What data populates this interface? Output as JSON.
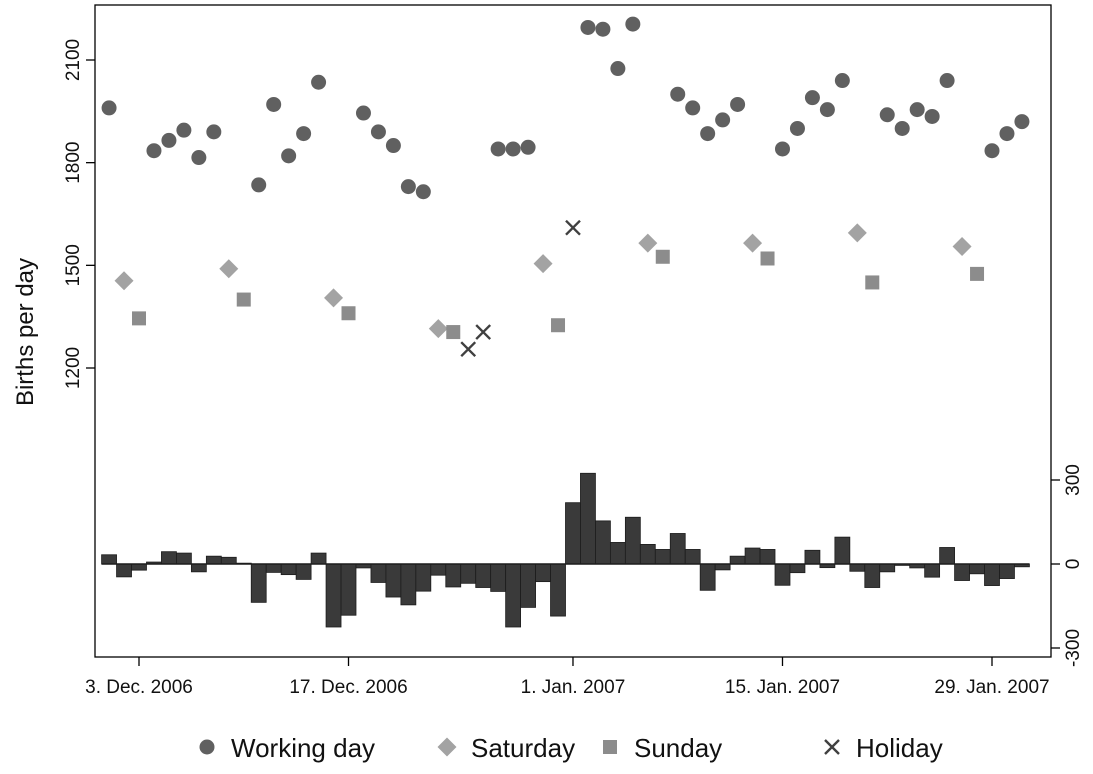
{
  "chart_data": {
    "type": "scatter",
    "ylabel": "Births per day",
    "x_tick_labels": [
      "3. Dec. 2006",
      "17. Dec. 2006",
      "1. Jan. 2007",
      "15. Jan. 2007",
      "29. Jan. 2007"
    ],
    "x_tick_dates": [
      "2006-12-03",
      "2006-12-17",
      "2007-01-01",
      "2007-01-15",
      "2007-01-29"
    ],
    "xlim": [
      "2006-11-30",
      "2007-02-01"
    ],
    "y_left_ticks": [
      1200,
      1500,
      1800,
      2100
    ],
    "y_left_range": [
      1200,
      2100
    ],
    "y_right_ticks": [
      -300,
      0,
      300
    ],
    "y_right_range": [
      -300,
      300
    ],
    "grid": false,
    "legend_position": "bottom",
    "legend": [
      {
        "label": "Working day",
        "marker": "circle",
        "color": "#606060"
      },
      {
        "label": "Saturday",
        "marker": "diamond",
        "color": "#a3a3a3"
      },
      {
        "label": "Sunday",
        "marker": "square",
        "color": "#8c8c8c"
      },
      {
        "label": "Holiday",
        "marker": "cross",
        "color": "#404040"
      }
    ],
    "points": [
      {
        "date": "2006-12-01",
        "births": 1960,
        "kind": "Working day"
      },
      {
        "date": "2006-12-02",
        "births": 1455,
        "kind": "Saturday"
      },
      {
        "date": "2006-12-03",
        "births": 1345,
        "kind": "Sunday"
      },
      {
        "date": "2006-12-04",
        "births": 1835,
        "kind": "Working day"
      },
      {
        "date": "2006-12-05",
        "births": 1865,
        "kind": "Working day"
      },
      {
        "date": "2006-12-06",
        "births": 1895,
        "kind": "Working day"
      },
      {
        "date": "2006-12-07",
        "births": 1815,
        "kind": "Working day"
      },
      {
        "date": "2006-12-08",
        "births": 1890,
        "kind": "Working day"
      },
      {
        "date": "2006-12-09",
        "births": 1490,
        "kind": "Saturday"
      },
      {
        "date": "2006-12-10",
        "births": 1400,
        "kind": "Sunday"
      },
      {
        "date": "2006-12-11",
        "births": 1735,
        "kind": "Working day"
      },
      {
        "date": "2006-12-12",
        "births": 1970,
        "kind": "Working day"
      },
      {
        "date": "2006-12-13",
        "births": 1820,
        "kind": "Working day"
      },
      {
        "date": "2006-12-14",
        "births": 1885,
        "kind": "Working day"
      },
      {
        "date": "2006-12-15",
        "births": 2035,
        "kind": "Working day"
      },
      {
        "date": "2006-12-16",
        "births": 1405,
        "kind": "Saturday"
      },
      {
        "date": "2006-12-17",
        "births": 1360,
        "kind": "Sunday"
      },
      {
        "date": "2006-12-18",
        "births": 1945,
        "kind": "Working day"
      },
      {
        "date": "2006-12-19",
        "births": 1890,
        "kind": "Working day"
      },
      {
        "date": "2006-12-20",
        "births": 1850,
        "kind": "Working day"
      },
      {
        "date": "2006-12-21",
        "births": 1730,
        "kind": "Working day"
      },
      {
        "date": "2006-12-22",
        "births": 1715,
        "kind": "Working day"
      },
      {
        "date": "2006-12-23",
        "births": 1315,
        "kind": "Saturday"
      },
      {
        "date": "2006-12-24",
        "births": 1305,
        "kind": "Sunday"
      },
      {
        "date": "2006-12-25",
        "births": 1255,
        "kind": "Holiday"
      },
      {
        "date": "2006-12-26",
        "births": 1305,
        "kind": "Holiday"
      },
      {
        "date": "2006-12-27",
        "births": 1840,
        "kind": "Working day"
      },
      {
        "date": "2006-12-28",
        "births": 1840,
        "kind": "Working day"
      },
      {
        "date": "2006-12-29",
        "births": 1845,
        "kind": "Working day"
      },
      {
        "date": "2006-12-30",
        "births": 1505,
        "kind": "Saturday"
      },
      {
        "date": "2006-12-31",
        "births": 1325,
        "kind": "Sunday"
      },
      {
        "date": "2007-01-01",
        "births": 1610,
        "kind": "Holiday"
      },
      {
        "date": "2007-01-02",
        "births": 2195,
        "kind": "Working day"
      },
      {
        "date": "2007-01-03",
        "births": 2190,
        "kind": "Working day"
      },
      {
        "date": "2007-01-04",
        "births": 2075,
        "kind": "Working day"
      },
      {
        "date": "2007-01-05",
        "births": 2205,
        "kind": "Working day"
      },
      {
        "date": "2007-01-06",
        "births": 1565,
        "kind": "Saturday"
      },
      {
        "date": "2007-01-07",
        "births": 1525,
        "kind": "Sunday"
      },
      {
        "date": "2007-01-08",
        "births": 2000,
        "kind": "Working day"
      },
      {
        "date": "2007-01-09",
        "births": 1960,
        "kind": "Working day"
      },
      {
        "date": "2007-01-10",
        "births": 1885,
        "kind": "Working day"
      },
      {
        "date": "2007-01-11",
        "births": 1925,
        "kind": "Working day"
      },
      {
        "date": "2007-01-12",
        "births": 1970,
        "kind": "Working day"
      },
      {
        "date": "2007-01-13",
        "births": 1565,
        "kind": "Saturday"
      },
      {
        "date": "2007-01-14",
        "births": 1520,
        "kind": "Sunday"
      },
      {
        "date": "2007-01-15",
        "births": 1840,
        "kind": "Working day"
      },
      {
        "date": "2007-01-16",
        "births": 1900,
        "kind": "Working day"
      },
      {
        "date": "2007-01-17",
        "births": 1990,
        "kind": "Working day"
      },
      {
        "date": "2007-01-18",
        "births": 1955,
        "kind": "Working day"
      },
      {
        "date": "2007-01-19",
        "births": 2040,
        "kind": "Working day"
      },
      {
        "date": "2007-01-20",
        "births": 1595,
        "kind": "Saturday"
      },
      {
        "date": "2007-01-21",
        "births": 1450,
        "kind": "Sunday"
      },
      {
        "date": "2007-01-22",
        "births": 1940,
        "kind": "Working day"
      },
      {
        "date": "2007-01-23",
        "births": 1900,
        "kind": "Working day"
      },
      {
        "date": "2007-01-24",
        "births": 1955,
        "kind": "Working day"
      },
      {
        "date": "2007-01-25",
        "births": 1935,
        "kind": "Working day"
      },
      {
        "date": "2007-01-26",
        "births": 2040,
        "kind": "Working day"
      },
      {
        "date": "2007-01-27",
        "births": 1555,
        "kind": "Saturday"
      },
      {
        "date": "2007-01-28",
        "births": 1475,
        "kind": "Sunday"
      },
      {
        "date": "2007-01-29",
        "births": 1835,
        "kind": "Working day"
      },
      {
        "date": "2007-01-30",
        "births": 1885,
        "kind": "Working day"
      },
      {
        "date": "2007-01-31",
        "births": 1920,
        "kind": "Working day"
      }
    ],
    "residuals": [
      {
        "date": "2006-12-01",
        "value": 33
      },
      {
        "date": "2006-12-02",
        "value": -46
      },
      {
        "date": "2006-12-03",
        "value": -22
      },
      {
        "date": "2006-12-04",
        "value": 7
      },
      {
        "date": "2006-12-05",
        "value": 44
      },
      {
        "date": "2006-12-06",
        "value": 39
      },
      {
        "date": "2006-12-07",
        "value": -28
      },
      {
        "date": "2006-12-08",
        "value": 28
      },
      {
        "date": "2006-12-09",
        "value": 24
      },
      {
        "date": "2006-12-10",
        "value": 3
      },
      {
        "date": "2006-12-11",
        "value": -137
      },
      {
        "date": "2006-12-12",
        "value": -30
      },
      {
        "date": "2006-12-13",
        "value": -38
      },
      {
        "date": "2006-12-14",
        "value": -55
      },
      {
        "date": "2006-12-15",
        "value": 39
      },
      {
        "date": "2006-12-16",
        "value": -225
      },
      {
        "date": "2006-12-17",
        "value": -183
      },
      {
        "date": "2006-12-18",
        "value": -14
      },
      {
        "date": "2006-12-19",
        "value": -66
      },
      {
        "date": "2006-12-20",
        "value": -118
      },
      {
        "date": "2006-12-21",
        "value": -146
      },
      {
        "date": "2006-12-22",
        "value": -97
      },
      {
        "date": "2006-12-23",
        "value": -40
      },
      {
        "date": "2006-12-24",
        "value": -82
      },
      {
        "date": "2006-12-25",
        "value": -69
      },
      {
        "date": "2006-12-26",
        "value": -84
      },
      {
        "date": "2006-12-27",
        "value": -98
      },
      {
        "date": "2006-12-28",
        "value": -225
      },
      {
        "date": "2006-12-29",
        "value": -155
      },
      {
        "date": "2006-12-30",
        "value": -63
      },
      {
        "date": "2006-12-31",
        "value": -186
      },
      {
        "date": "2007-01-01",
        "value": 219
      },
      {
        "date": "2007-01-02",
        "value": 324
      },
      {
        "date": "2007-01-03",
        "value": 154
      },
      {
        "date": "2007-01-04",
        "value": 77
      },
      {
        "date": "2007-01-05",
        "value": 167
      },
      {
        "date": "2007-01-06",
        "value": 70
      },
      {
        "date": "2007-01-07",
        "value": 52
      },
      {
        "date": "2007-01-08",
        "value": 109
      },
      {
        "date": "2007-01-09",
        "value": 52
      },
      {
        "date": "2007-01-10",
        "value": -94
      },
      {
        "date": "2007-01-11",
        "value": -21
      },
      {
        "date": "2007-01-12",
        "value": 28
      },
      {
        "date": "2007-01-13",
        "value": 57
      },
      {
        "date": "2007-01-14",
        "value": 52
      },
      {
        "date": "2007-01-15",
        "value": -76
      },
      {
        "date": "2007-01-16",
        "value": -31
      },
      {
        "date": "2007-01-17",
        "value": 49
      },
      {
        "date": "2007-01-18",
        "value": -13
      },
      {
        "date": "2007-01-19",
        "value": 96
      },
      {
        "date": "2007-01-20",
        "value": -26
      },
      {
        "date": "2007-01-21",
        "value": -84
      },
      {
        "date": "2007-01-22",
        "value": -28
      },
      {
        "date": "2007-01-23",
        "value": -5
      },
      {
        "date": "2007-01-24",
        "value": -14
      },
      {
        "date": "2007-01-25",
        "value": -47
      },
      {
        "date": "2007-01-26",
        "value": 59
      },
      {
        "date": "2007-01-27",
        "value": -59
      },
      {
        "date": "2007-01-28",
        "value": -35
      },
      {
        "date": "2007-01-29",
        "value": -77
      },
      {
        "date": "2007-01-30",
        "value": -52
      },
      {
        "date": "2007-01-31",
        "value": -10
      }
    ]
  }
}
